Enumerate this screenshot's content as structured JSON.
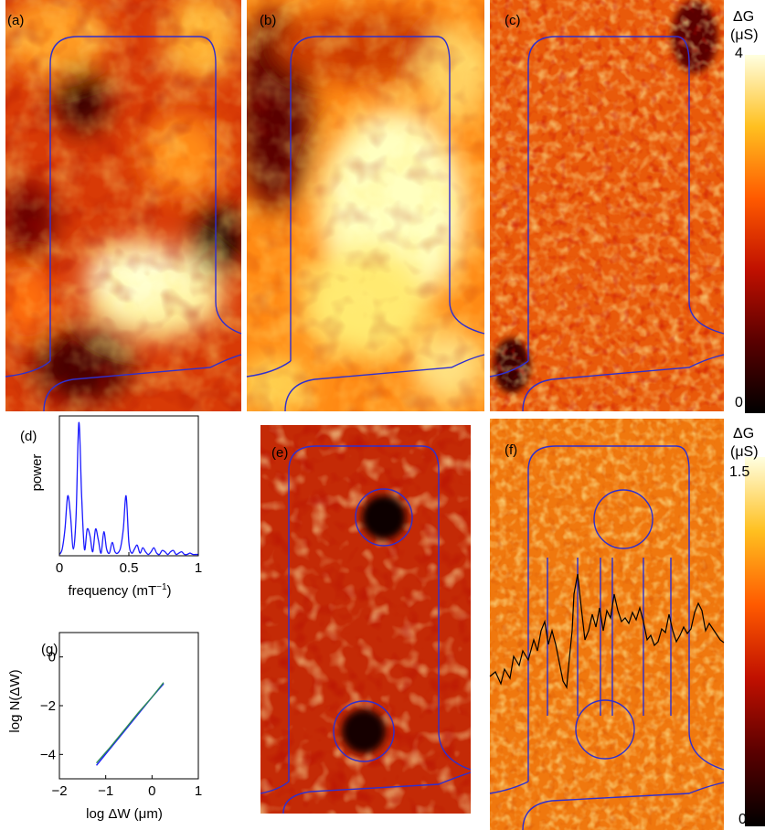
{
  "panels": {
    "a": "(a)",
    "b": "(b)",
    "c": "(c)",
    "d": "(d)",
    "e": "(e)",
    "f": "(f)",
    "g": "(g)"
  },
  "colorbar_top": {
    "title_line1": "ΔG",
    "title_line2": "(μS)",
    "max": "4",
    "min": "0"
  },
  "colorbar_bottom": {
    "title_line1": "ΔG",
    "title_line2": "(μS)",
    "max": "1.5",
    "min": "0"
  },
  "colors": {
    "outline": "#2f2fcf",
    "spectrum": "#1a1aff",
    "fit_line": "#2e8b57",
    "trace": "#000000"
  },
  "chart_data": [
    {
      "id": "d",
      "type": "line",
      "xlabel": "frequency (mT",
      "xlabel_sup": "−1",
      "xlabel_tail": ")",
      "ylabel": "power",
      "xlim": [
        0,
        1
      ],
      "xticks": [
        "0",
        "0.5",
        "1"
      ],
      "xtick_values": [
        0,
        0.5,
        1
      ],
      "x": [
        0,
        0.02,
        0.04,
        0.06,
        0.08,
        0.1,
        0.12,
        0.14,
        0.16,
        0.18,
        0.2,
        0.22,
        0.24,
        0.26,
        0.28,
        0.3,
        0.32,
        0.34,
        0.36,
        0.38,
        0.4,
        0.42,
        0.44,
        0.46,
        0.48,
        0.5,
        0.52,
        0.54,
        0.56,
        0.58,
        0.6,
        0.62,
        0.64,
        0.66,
        0.68,
        0.7,
        0.72,
        0.74,
        0.76,
        0.78,
        0.8,
        0.82,
        0.84,
        0.86,
        0.88,
        0.9,
        0.92,
        0.94,
        0.96,
        0.98,
        1.0
      ],
      "y": [
        0.01,
        0.05,
        0.2,
        0.45,
        0.3,
        0.05,
        0.3,
        1.0,
        0.45,
        0.05,
        0.2,
        0.15,
        0.03,
        0.2,
        0.12,
        0.02,
        0.18,
        0.05,
        0.02,
        0.1,
        0.03,
        0.02,
        0.06,
        0.2,
        0.45,
        0.1,
        0.02,
        0.05,
        0.08,
        0.02,
        0.06,
        0.03,
        0.01,
        0.03,
        0.06,
        0.02,
        0.01,
        0.04,
        0.03,
        0.01,
        0.03,
        0.04,
        0.01,
        0.02,
        0.03,
        0.01,
        0.01,
        0.02,
        0.01,
        0.01,
        0.01
      ],
      "ylim": [
        0,
        1.05
      ]
    },
    {
      "id": "g",
      "type": "line",
      "xlabel": "log ΔW (μm)",
      "ylabel": "log N(ΔW)",
      "xlim": [
        -2,
        1
      ],
      "ylim": [
        -5,
        1
      ],
      "xticks": [
        "−2",
        "−1",
        "0",
        "1"
      ],
      "xtick_values": [
        -2,
        -1,
        0,
        1
      ],
      "yticks": [
        "−4",
        "−2",
        "0"
      ],
      "ytick_values": [
        -4,
        -2,
        0
      ],
      "series": [
        {
          "x": [
            -1.2,
            -0.9,
            -0.6,
            -0.3,
            0.0,
            0.25
          ],
          "y": [
            -4.45,
            -3.75,
            -3.05,
            -2.35,
            -1.65,
            -1.1
          ]
        },
        {
          "x": [
            -1.2,
            -0.9,
            -0.6,
            -0.3,
            0.0,
            0.25
          ],
          "y": [
            -4.35,
            -3.7,
            -3.0,
            -2.3,
            -1.65,
            -1.05
          ]
        }
      ]
    }
  ]
}
